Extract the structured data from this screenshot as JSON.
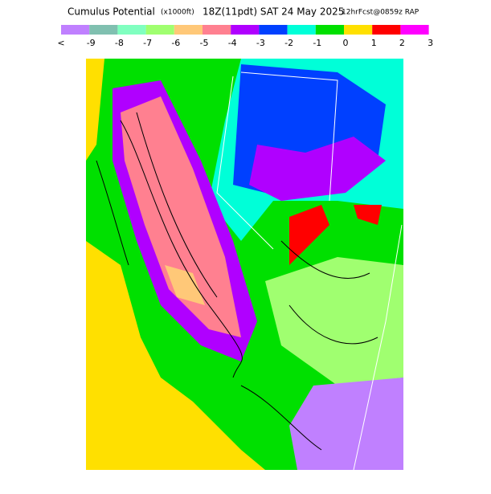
{
  "header": {
    "title": "Cumulus Potential",
    "units": "(x1000ft)",
    "valid": "18Z(11pdt) SAT 24 May 2025",
    "forecast": "12hrFcst@0859z RAP"
  },
  "colorbar": {
    "colors": [
      "#c080ff",
      "#80c0b0",
      "#80ffc0",
      "#a0ff70",
      "#ffc878",
      "#ff8090",
      "#b000ff",
      "#0040ff",
      "#00ffd8",
      "#00e000",
      "#ffe000",
      "#ff0000",
      "#ff00ff"
    ],
    "ticks": [
      "<",
      -9,
      -8,
      -7,
      -6,
      -5,
      -4,
      -3,
      -2,
      -1,
      0,
      1,
      2,
      3
    ]
  }
}
